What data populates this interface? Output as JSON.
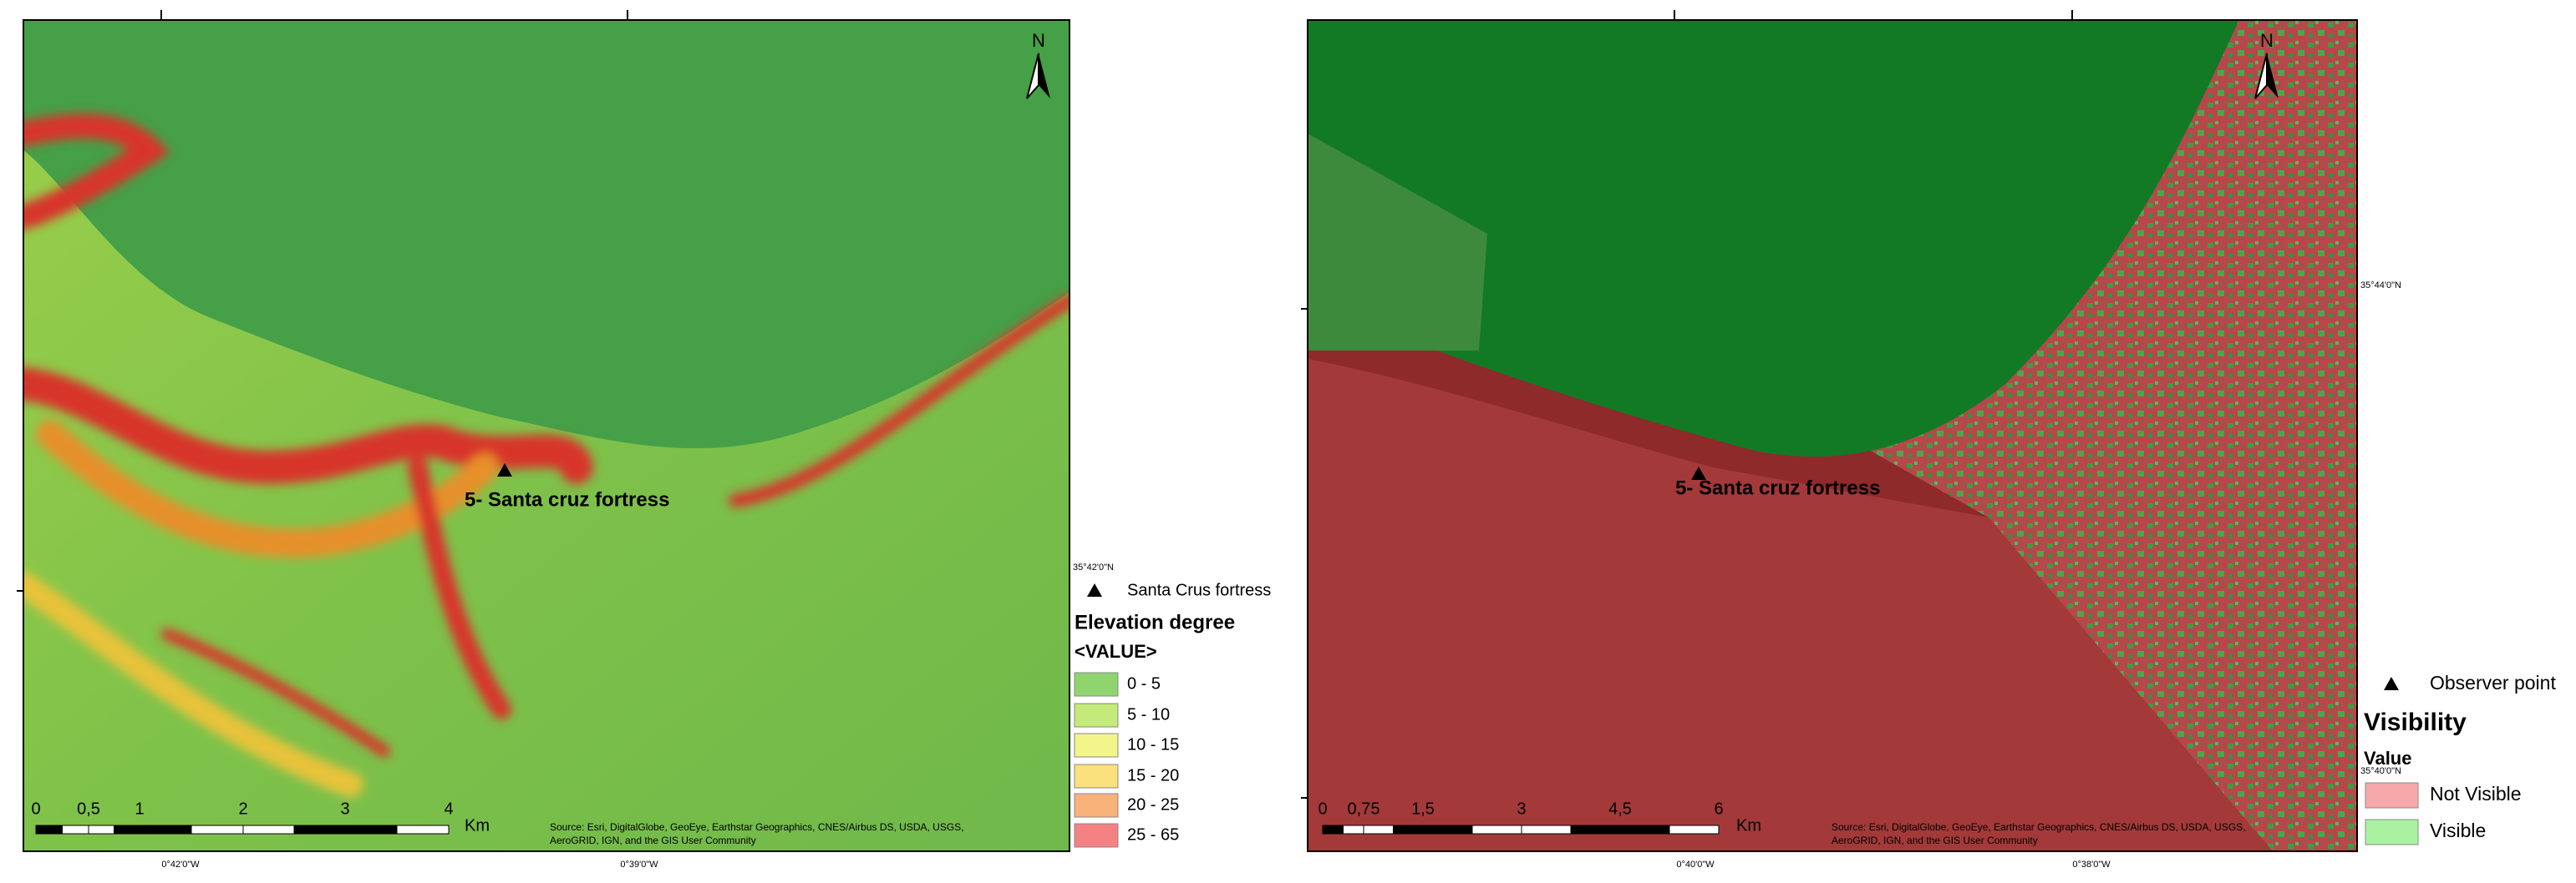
{
  "maps": [
    {
      "north": "N",
      "site_label": "5- Santa cruz fortress",
      "scale_labels": [
        "0",
        "0,5",
        "1",
        "2",
        "3",
        "4"
      ],
      "scale_unit": "Km",
      "attribution": [
        "Source: Esri, DigitalGlobe, GeoEye, Earthstar Geographics, CNES/Airbus DS, USDA, USGS,",
        "AeroGRID, IGN, and the GIS User Community"
      ],
      "lon_labels": [
        "0°42'0\"W",
        "0°39'0\"W"
      ],
      "lat_labels": [
        "35°42'0\"N"
      ],
      "legend": {
        "point": "Santa Crus fortress",
        "title": "Elevation degree",
        "subtitle": "<VALUE>",
        "items": [
          {
            "label": "0 - 5",
            "color": "#8fd46e"
          },
          {
            "label": "5 - 10",
            "color": "#c4ea7a"
          },
          {
            "label": "10 - 15",
            "color": "#f2f58a"
          },
          {
            "label": "15 - 20",
            "color": "#fbe07e"
          },
          {
            "label": "20 - 25",
            "color": "#f9b27a"
          },
          {
            "label": "25 - 65",
            "color": "#f58282"
          }
        ]
      }
    },
    {
      "north": "N",
      "site_label": "5- Santa cruz fortress",
      "scale_labels": [
        "0",
        "0,75",
        "1,5",
        "3",
        "4,5",
        "6"
      ],
      "scale_unit": "Km",
      "attribution": [
        "Source: Esri, DigitalGlobe, GeoEye, Earthstar Geographics, CNES/Airbus DS, USDA, USGS,",
        "AeroGRID, IGN, and the GIS User Community"
      ],
      "lon_labels": [
        "0°40'0\"W",
        "0°38'0\"W"
      ],
      "lat_labels": [
        "35°44'0\"N",
        "35°40'0\"N"
      ],
      "legend": {
        "point": "Observer point",
        "title": "Visibility",
        "subtitle": "Value",
        "items": [
          {
            "label": "Not Visible",
            "color": "#f7a9a9"
          },
          {
            "label": "Visible",
            "color": "#a9f2a2"
          }
        ]
      }
    }
  ]
}
